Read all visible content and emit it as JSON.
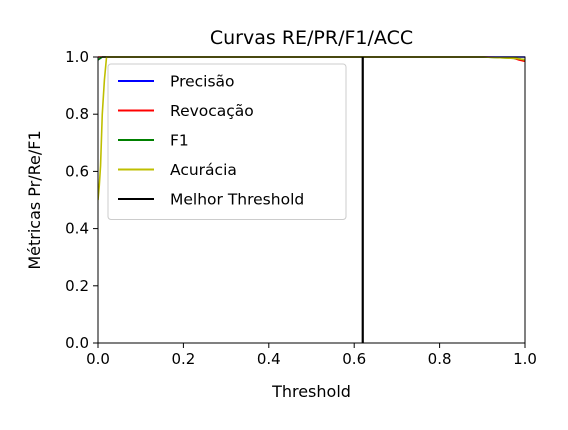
{
  "chart_data": {
    "type": "line",
    "title": "Curvas RE/PR/F1/ACC",
    "xlabel": "Threshold",
    "ylabel": "Métricas Pr/Re/F1",
    "xlim": [
      0.0,
      1.0
    ],
    "ylim": [
      0.0,
      1.0
    ],
    "xticks": [
      0.0,
      0.2,
      0.4,
      0.6,
      0.8,
      1.0
    ],
    "xtick_labels": [
      "0.0",
      "0.2",
      "0.4",
      "0.6",
      "0.8",
      "1.0"
    ],
    "yticks": [
      0.0,
      0.2,
      0.4,
      0.6,
      0.8,
      1.0
    ],
    "ytick_labels": [
      "0.0",
      "0.2",
      "0.4",
      "0.6",
      "0.8",
      "1.0"
    ],
    "grid": false,
    "legend_position": "upper-left",
    "series": [
      {
        "name": "Precisão",
        "color": "#0000ff",
        "x": [
          0.0,
          0.01,
          0.02,
          0.05,
          0.5,
          0.98,
          1.0
        ],
        "y": [
          0.99,
          1.0,
          1.0,
          1.0,
          1.0,
          1.0,
          1.0
        ]
      },
      {
        "name": "Revocação",
        "color": "#ff0000",
        "x": [
          0.0,
          0.5,
          0.9,
          0.97,
          0.985,
          1.0
        ],
        "y": [
          1.0,
          1.0,
          1.0,
          0.998,
          0.99,
          0.985
        ]
      },
      {
        "name": "F1",
        "color": "#008000",
        "x": [
          0.0,
          0.005,
          0.01,
          0.02,
          0.5,
          0.9,
          0.98,
          1.0
        ],
        "y": [
          0.99,
          0.995,
          1.0,
          1.0,
          1.0,
          1.0,
          0.995,
          0.99
        ]
      },
      {
        "name": "Acurácia",
        "color": "#bfbf00",
        "x": [
          0.0,
          0.003,
          0.006,
          0.01,
          0.015,
          0.02,
          0.5,
          0.9,
          0.98,
          1.0
        ],
        "y": [
          0.5,
          0.55,
          0.62,
          0.8,
          0.92,
          1.0,
          1.0,
          1.0,
          0.995,
          0.99
        ]
      },
      {
        "name": "Melhor Threshold",
        "color": "#000000",
        "x": [
          0.62,
          0.62
        ],
        "y": [
          0.0,
          1.0
        ]
      }
    ]
  }
}
